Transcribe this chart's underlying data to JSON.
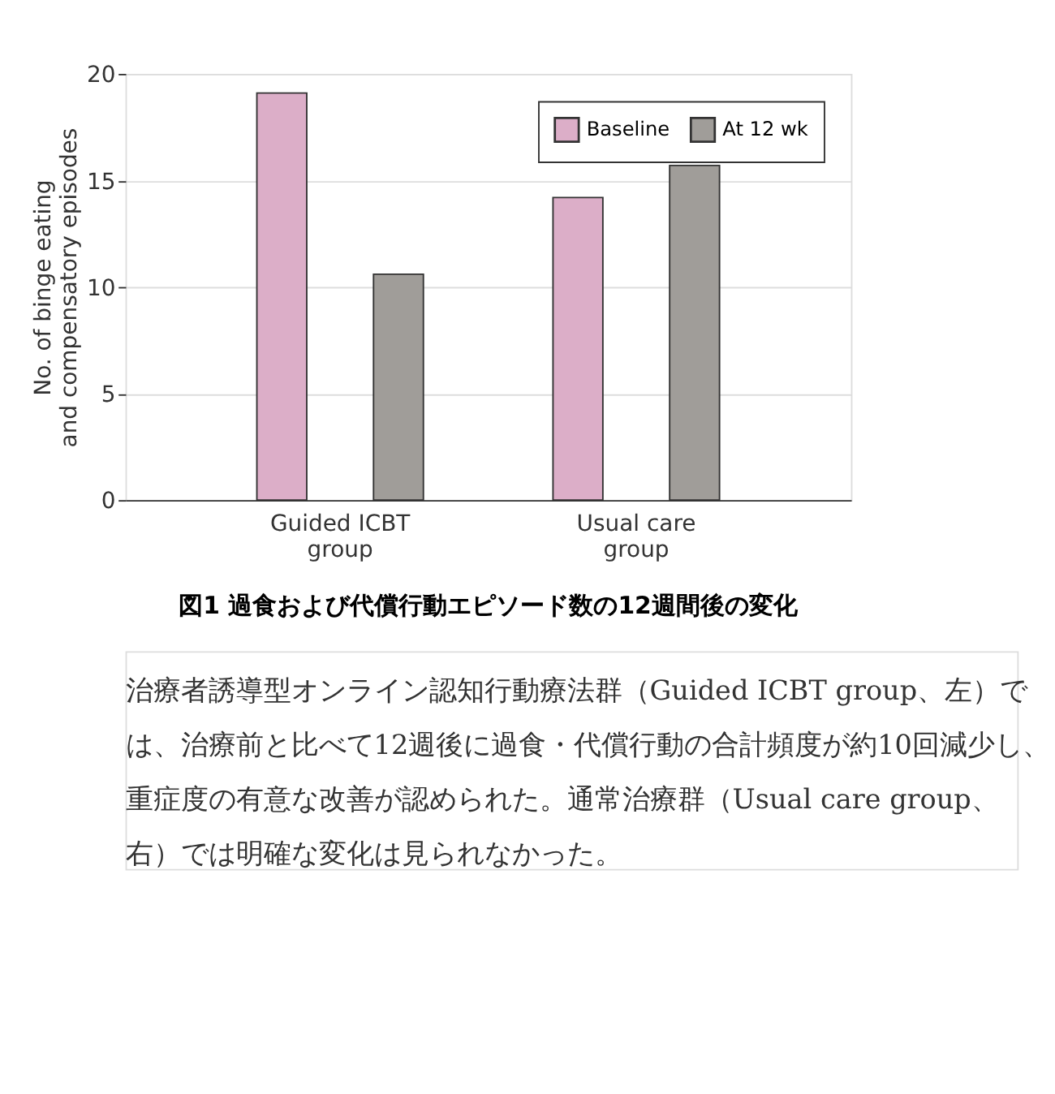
{
  "chart_data": {
    "type": "bar",
    "title": "図1 過食および代償行動エピソード数の12週間後の変化",
    "ylabel": "No. of binge eating\nand compensatory episodes",
    "categories": [
      "Guided ICBT\ngroup",
      "Usual care\ngroup"
    ],
    "series": [
      {
        "name": "Baseline",
        "color": "#dcaec8",
        "values": [
          19.1,
          14.2
        ]
      },
      {
        "name": "At 12 wk",
        "color": "#a09d99",
        "values": [
          10.6,
          15.7
        ]
      }
    ],
    "ylim": [
      0,
      20
    ],
    "yticks": [
      0,
      5,
      10,
      15,
      20
    ],
    "grid": "y",
    "legend": "top right",
    "annotations": [
      "治療者誘導型オンライン認知行動療法群（Guided ICBT group、左）では、治療前と比べて12週後に過食・代償行動の合計頻度が約10回減少し、重症度の有意な改善が認められた。通常治療群（Usual care group、右）では明確な変化は見られなかった。"
    ]
  }
}
